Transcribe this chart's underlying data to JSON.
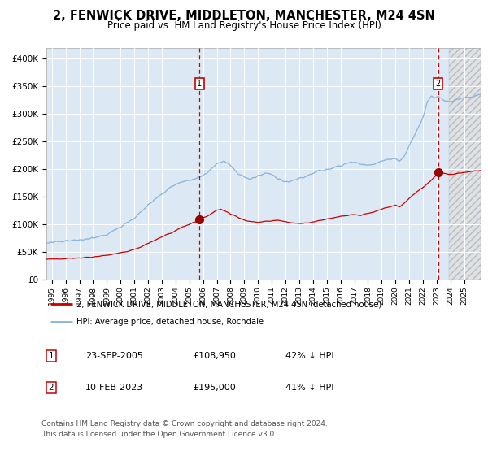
{
  "title": "2, FENWICK DRIVE, MIDDLETON, MANCHESTER, M24 4SN",
  "subtitle": "Price paid vs. HM Land Registry's House Price Index (HPI)",
  "title_fontsize": 10.5,
  "subtitle_fontsize": 8.5,
  "background_color": "#dce9f5",
  "grid_color": "#ffffff",
  "ylim": [
    0,
    420000
  ],
  "yticks": [
    0,
    50000,
    100000,
    150000,
    200000,
    250000,
    300000,
    350000,
    400000
  ],
  "ytick_labels": [
    "£0",
    "£50K",
    "£100K",
    "£150K",
    "£200K",
    "£250K",
    "£300K",
    "£350K",
    "£400K"
  ],
  "xlim_start": 1994.6,
  "xlim_end": 2026.2,
  "hpi_line_color": "#8ab4d8",
  "price_line_color": "#cc0000",
  "marker_color": "#990000",
  "vline_color": "#cc0000",
  "sale1_date_num": 2005.73,
  "sale1_price": 108950,
  "sale1_label": "1",
  "sale1_display": "23-SEP-2005",
  "sale1_amount": "£108,950",
  "sale1_pct": "42% ↓ HPI",
  "sale2_date_num": 2023.11,
  "sale2_price": 195000,
  "sale2_label": "2",
  "sale2_display": "10-FEB-2023",
  "sale2_amount": "£195,000",
  "sale2_pct": "41% ↓ HPI",
  "hatch_start": 2023.9,
  "legend_line1": "2, FENWICK DRIVE, MIDDLETON, MANCHESTER, M24 4SN (detached house)",
  "legend_line2": "HPI: Average price, detached house, Rochdale",
  "footer1": "Contains HM Land Registry data © Crown copyright and database right 2024.",
  "footer2": "This data is licensed under the Open Government Licence v3.0.",
  "hpi_waypoints": [
    [
      1994.6,
      66000
    ],
    [
      1995.0,
      68000
    ],
    [
      1996.0,
      70000
    ],
    [
      1997.0,
      72500
    ],
    [
      1998.0,
      75000
    ],
    [
      1999.0,
      82000
    ],
    [
      2000.0,
      96000
    ],
    [
      2001.0,
      112000
    ],
    [
      2002.0,
      135000
    ],
    [
      2003.0,
      155000
    ],
    [
      2003.8,
      170000
    ],
    [
      2004.5,
      178000
    ],
    [
      2005.0,
      180000
    ],
    [
      2005.73,
      186000
    ],
    [
      2006.0,
      188000
    ],
    [
      2007.0,
      210000
    ],
    [
      2007.5,
      215000
    ],
    [
      2008.0,
      207000
    ],
    [
      2008.5,
      195000
    ],
    [
      2009.0,
      185000
    ],
    [
      2009.5,
      183000
    ],
    [
      2010.0,
      188000
    ],
    [
      2010.5,
      192000
    ],
    [
      2011.0,
      190000
    ],
    [
      2011.5,
      182000
    ],
    [
      2012.0,
      178000
    ],
    [
      2012.5,
      180000
    ],
    [
      2013.0,
      183000
    ],
    [
      2013.5,
      188000
    ],
    [
      2014.0,
      193000
    ],
    [
      2014.5,
      198000
    ],
    [
      2015.0,
      200000
    ],
    [
      2015.5,
      203000
    ],
    [
      2016.0,
      208000
    ],
    [
      2016.5,
      212000
    ],
    [
      2017.0,
      213000
    ],
    [
      2017.5,
      210000
    ],
    [
      2018.0,
      208000
    ],
    [
      2018.5,
      210000
    ],
    [
      2019.0,
      215000
    ],
    [
      2019.5,
      218000
    ],
    [
      2020.0,
      220000
    ],
    [
      2020.3,
      215000
    ],
    [
      2020.6,
      222000
    ],
    [
      2021.0,
      242000
    ],
    [
      2021.5,
      268000
    ],
    [
      2022.0,
      295000
    ],
    [
      2022.3,
      320000
    ],
    [
      2022.6,
      333000
    ],
    [
      2022.9,
      328000
    ],
    [
      2023.0,
      330000
    ],
    [
      2023.11,
      332000
    ],
    [
      2023.5,
      325000
    ],
    [
      2023.9,
      322000
    ],
    [
      2024.3,
      325000
    ],
    [
      2024.8,
      328000
    ],
    [
      2025.3,
      330000
    ],
    [
      2025.8,
      333000
    ],
    [
      2026.2,
      335000
    ]
  ],
  "price_waypoints": [
    [
      1994.6,
      37500
    ],
    [
      1995.0,
      38000
    ],
    [
      1995.5,
      37500
    ],
    [
      1996.0,
      38500
    ],
    [
      1996.5,
      39000
    ],
    [
      1997.0,
      39500
    ],
    [
      1997.5,
      40500
    ],
    [
      1998.0,
      42000
    ],
    [
      1998.5,
      43000
    ],
    [
      1999.0,
      44500
    ],
    [
      1999.5,
      46500
    ],
    [
      2000.0,
      49000
    ],
    [
      2000.5,
      51000
    ],
    [
      2001.0,
      55000
    ],
    [
      2001.5,
      60000
    ],
    [
      2002.0,
      66000
    ],
    [
      2002.5,
      72000
    ],
    [
      2003.0,
      78000
    ],
    [
      2003.5,
      83000
    ],
    [
      2004.0,
      89000
    ],
    [
      2004.5,
      96000
    ],
    [
      2005.0,
      100000
    ],
    [
      2005.5,
      105000
    ],
    [
      2005.73,
      108950
    ],
    [
      2006.0,
      112000
    ],
    [
      2006.5,
      118000
    ],
    [
      2007.0,
      126000
    ],
    [
      2007.3,
      128000
    ],
    [
      2007.8,
      122000
    ],
    [
      2008.3,
      116000
    ],
    [
      2008.8,
      110000
    ],
    [
      2009.0,
      108000
    ],
    [
      2009.5,
      106000
    ],
    [
      2010.0,
      104000
    ],
    [
      2010.5,
      106000
    ],
    [
      2011.0,
      107000
    ],
    [
      2011.5,
      108000
    ],
    [
      2012.0,
      105000
    ],
    [
      2012.5,
      103000
    ],
    [
      2013.0,
      102000
    ],
    [
      2013.5,
      103000
    ],
    [
      2014.0,
      105000
    ],
    [
      2014.5,
      107000
    ],
    [
      2015.0,
      110000
    ],
    [
      2015.5,
      112000
    ],
    [
      2016.0,
      115000
    ],
    [
      2016.5,
      117000
    ],
    [
      2017.0,
      118000
    ],
    [
      2017.5,
      117000
    ],
    [
      2018.0,
      120000
    ],
    [
      2018.5,
      124000
    ],
    [
      2019.0,
      128000
    ],
    [
      2019.5,
      132000
    ],
    [
      2020.0,
      135000
    ],
    [
      2020.3,
      132000
    ],
    [
      2020.6,
      138000
    ],
    [
      2021.0,
      148000
    ],
    [
      2021.5,
      158000
    ],
    [
      2022.0,
      168000
    ],
    [
      2022.5,
      178000
    ],
    [
      2023.0,
      190000
    ],
    [
      2023.11,
      195000
    ],
    [
      2023.5,
      193000
    ],
    [
      2023.9,
      191000
    ],
    [
      2024.3,
      192000
    ],
    [
      2024.8,
      193500
    ],
    [
      2025.3,
      195000
    ],
    [
      2025.8,
      197000
    ],
    [
      2026.2,
      198000
    ]
  ]
}
